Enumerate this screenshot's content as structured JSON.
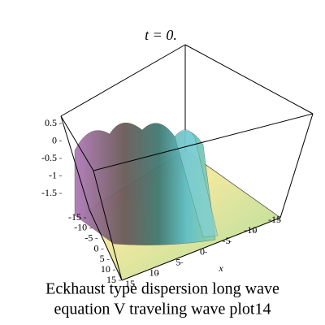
{
  "chart_data": {
    "type": "surface3d",
    "title": "t = 0.",
    "xlabel": "x",
    "caption": [
      "Eckhaust type dispersion long wave",
      "equation V traveling wave plot14"
    ],
    "zticks": [
      0.5,
      0,
      -0.5,
      -1,
      -1.5
    ],
    "yticks": [
      -15,
      -10,
      -5,
      0,
      5,
      10,
      15
    ],
    "xticks": [
      -15,
      -10,
      -5,
      0,
      5,
      10,
      15
    ]
  }
}
